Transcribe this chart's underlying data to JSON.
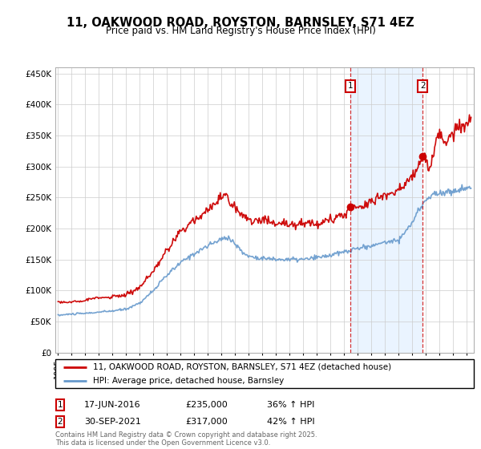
{
  "title": "11, OAKWOOD ROAD, ROYSTON, BARNSLEY, S71 4EZ",
  "subtitle": "Price paid vs. HM Land Registry's House Price Index (HPI)",
  "legend_label1": "11, OAKWOOD ROAD, ROYSTON, BARNSLEY, S71 4EZ (detached house)",
  "legend_label2": "HPI: Average price, detached house, Barnsley",
  "red_color": "#cc0000",
  "blue_color": "#6699cc",
  "shade_color": "#ddeeff",
  "marker1_year": 2016.46,
  "marker2_year": 2021.75,
  "marker1_value": 235000,
  "marker2_value": 317000,
  "annotation1": {
    "num": "1",
    "date": "17-JUN-2016",
    "price": "£235,000",
    "pct": "36% ↑ HPI"
  },
  "annotation2": {
    "num": "2",
    "date": "30-SEP-2021",
    "price": "£317,000",
    "pct": "42% ↑ HPI"
  },
  "footer": "Contains HM Land Registry data © Crown copyright and database right 2025.\nThis data is licensed under the Open Government Licence v3.0.",
  "ylim": [
    0,
    460000
  ],
  "yticks": [
    0,
    50000,
    100000,
    150000,
    200000,
    250000,
    300000,
    350000,
    400000,
    450000
  ],
  "background_color": "#ffffff"
}
